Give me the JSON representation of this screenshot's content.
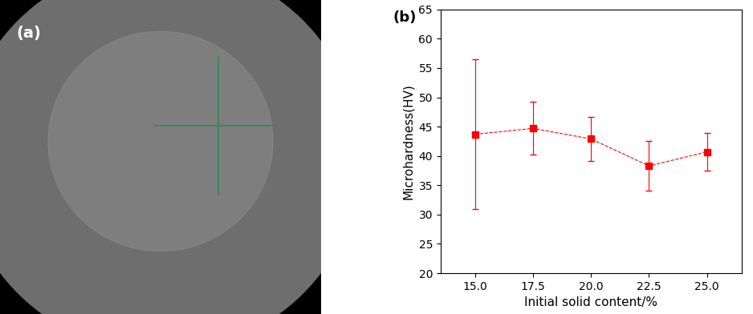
{
  "image_panel": {
    "label": "(a)"
  },
  "chart_data": {
    "type": "line",
    "annotations": [
      "(b)"
    ],
    "x_label": "Initial solid content/%",
    "y_label": "Microhardness(HV)",
    "x": [
      15.0,
      17.5,
      20.0,
      22.5,
      25.0
    ],
    "series": [
      {
        "name": "Microhardness",
        "color": "#ff0000",
        "marker": "square",
        "line_style": "dashed",
        "values": [
          43.7,
          44.7,
          42.9,
          38.3,
          40.7
        ],
        "errors": [
          12.8,
          4.5,
          3.8,
          4.2,
          3.2
        ]
      }
    ],
    "xlim": [
      13.5,
      26.5
    ],
    "xticks": [
      {
        "value": 15,
        "label": "15.0"
      },
      17.5,
      {
        "value": 20,
        "label": "20.0"
      },
      22.5,
      {
        "value": 25,
        "label": "25.0"
      }
    ],
    "ylim": [
      20,
      65
    ],
    "yticks": [
      20,
      25,
      30,
      35,
      40,
      45,
      50,
      55,
      60,
      65
    ],
    "grid": false
  }
}
